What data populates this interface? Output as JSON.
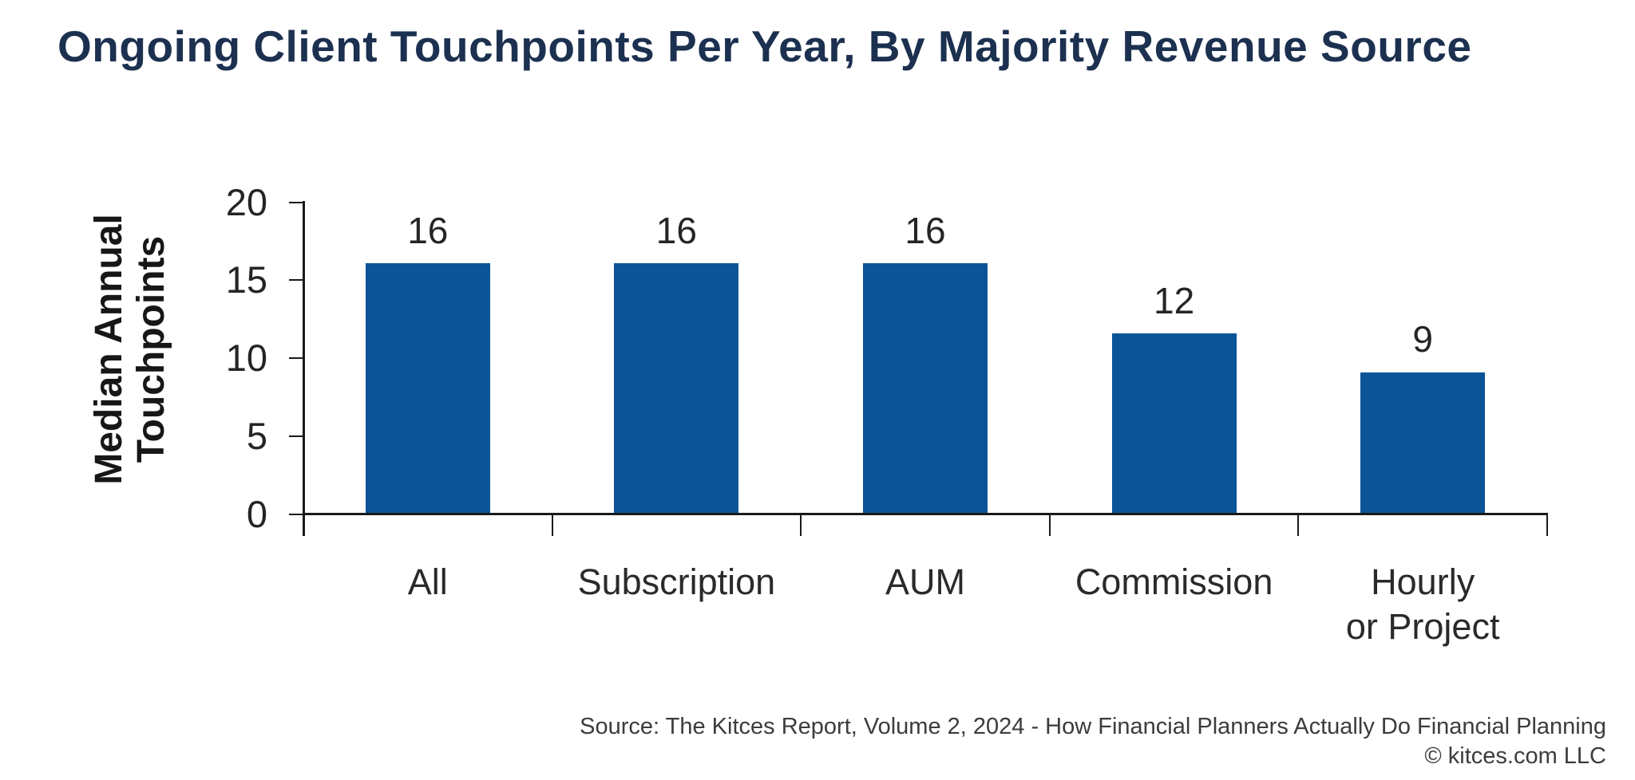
{
  "header": {
    "title": "Ongoing Client Touchpoints Per Year, By Majority Revenue Source"
  },
  "y_axis": {
    "label_line1": "Median Annual",
    "label_line2": "Touchpoints",
    "tick_labels": [
      "20",
      "15",
      "10",
      "5",
      "0"
    ]
  },
  "footer": {
    "source_line1": "Source: The Kitces Report, Volume 2, 2024 - How Financial Planners Actually Do Financial Planning",
    "source_line2": "© kitces.com LLC"
  },
  "colors": {
    "bar": "#0C5498",
    "title": "#1C3050",
    "axis": "#1A1A1A",
    "tick_text": "#262425",
    "category_text": "#2B2A2B",
    "source_text": "#3C3B3D"
  },
  "chart_data": {
    "type": "bar",
    "title": "Ongoing Client Touchpoints Per Year, By Majority Revenue Source",
    "categories": [
      "All",
      "Subscription",
      "AUM",
      "Commission",
      "Hourly or Project"
    ],
    "category_label_lines": [
      [
        "All"
      ],
      [
        "Subscription"
      ],
      [
        "AUM"
      ],
      [
        "Commission"
      ],
      [
        "Hourly",
        "or Project"
      ]
    ],
    "values": [
      16,
      16,
      16,
      12,
      9
    ],
    "data_labels": [
      "16",
      "16",
      "16",
      "12",
      "9"
    ],
    "drawn_bar_values": [
      16,
      16,
      16,
      11.5,
      9
    ],
    "xlabel": "",
    "ylabel": "Median Annual Touchpoints",
    "ylim": [
      0,
      20
    ],
    "yticks": [
      20,
      15,
      10,
      5,
      0
    ],
    "grid": false,
    "legend": "none",
    "bar_color": "#0C5498"
  }
}
